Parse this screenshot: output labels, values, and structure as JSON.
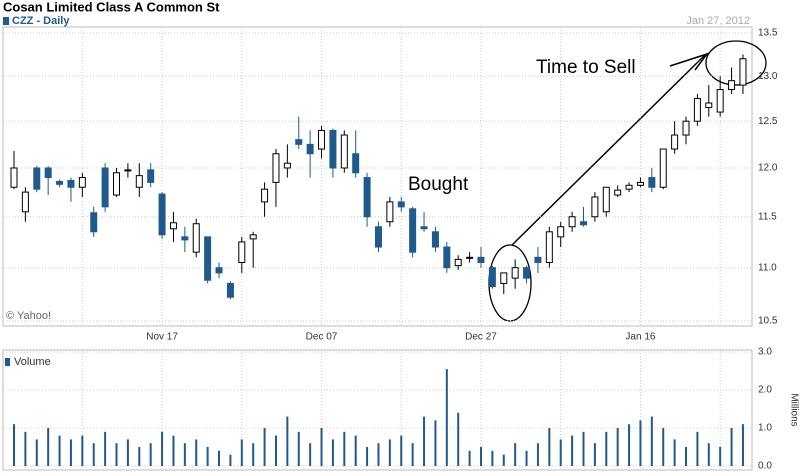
{
  "chart_data": [
    {
      "type": "candlestick",
      "title": "Cosan Limited Class A Common St",
      "name": "CZZ - Daily",
      "date": "Jan 27, 2012",
      "source": "© Yahoo!",
      "annotations": [
        {
          "text": "Bought"
        },
        {
          "text": "Time to Sell"
        }
      ],
      "categories": [
        null,
        null,
        null,
        null,
        null,
        null,
        null,
        null,
        null,
        null,
        null,
        null,
        null,
        "Nov 17",
        null,
        null,
        null,
        null,
        null,
        null,
        null,
        null,
        null,
        null,
        null,
        null,
        null,
        "Dec 07",
        null,
        null,
        null,
        null,
        null,
        null,
        null,
        null,
        null,
        null,
        null,
        null,
        null,
        "Dec 27",
        null,
        null,
        null,
        null,
        null,
        null,
        null,
        null,
        null,
        null,
        null,
        null,
        null,
        "Jan 16",
        null,
        null,
        null,
        null,
        null,
        null,
        null,
        null,
        null
      ],
      "open": [
        11.8,
        11.55,
        12.0,
        12.0,
        11.86,
        11.87,
        11.8,
        11.54,
        12.0,
        11.72,
        11.97,
        11.8,
        11.98,
        11.73,
        11.38,
        11.3,
        11.15,
        11.3,
        11.0,
        10.85,
        11.05,
        11.28,
        11.65,
        11.85,
        12.0,
        12.3,
        12.25,
        12.2,
        12.4,
        12.0,
        12.15,
        11.9,
        11.4,
        11.45,
        11.65,
        11.58,
        11.4,
        11.35,
        11.2,
        11.02,
        11.1,
        11.1,
        11.0,
        10.85,
        10.9,
        11.0,
        11.1,
        11.05,
        11.3,
        11.4,
        11.45,
        11.5,
        11.55,
        11.72,
        11.78,
        11.82,
        11.9,
        11.8,
        12.2,
        12.35,
        12.5,
        12.65,
        12.6,
        12.85,
        12.9
      ],
      "high": [
        12.18,
        11.8,
        12.02,
        12.02,
        11.88,
        11.9,
        11.95,
        11.6,
        12.05,
        12.0,
        12.05,
        12.05,
        12.05,
        11.75,
        11.55,
        11.4,
        11.48,
        11.3,
        11.05,
        10.87,
        11.3,
        11.35,
        11.85,
        12.2,
        12.25,
        12.55,
        12.4,
        12.45,
        12.42,
        12.4,
        12.4,
        11.95,
        11.45,
        11.7,
        11.7,
        11.6,
        11.55,
        11.4,
        11.25,
        11.12,
        11.15,
        11.2,
        11.02,
        10.95,
        11.08,
        11.02,
        11.2,
        11.4,
        11.45,
        11.55,
        11.6,
        11.75,
        11.8,
        11.82,
        11.85,
        11.9,
        12.0,
        12.2,
        12.5,
        12.55,
        12.8,
        12.9,
        13.0,
        13.1,
        13.25
      ],
      "low": [
        11.78,
        11.45,
        11.75,
        11.72,
        11.8,
        11.65,
        11.7,
        11.3,
        11.55,
        11.7,
        11.9,
        11.7,
        11.8,
        11.28,
        11.25,
        11.15,
        11.1,
        10.85,
        10.9,
        10.7,
        10.95,
        11.0,
        11.5,
        11.6,
        11.9,
        12.2,
        11.9,
        12.1,
        11.9,
        11.95,
        11.9,
        11.4,
        11.15,
        11.4,
        11.55,
        11.1,
        11.35,
        11.15,
        10.95,
        10.98,
        11.05,
        11.0,
        10.8,
        10.75,
        10.8,
        10.85,
        10.95,
        11.0,
        11.2,
        11.35,
        11.4,
        11.45,
        11.5,
        11.7,
        11.75,
        11.8,
        11.75,
        11.78,
        12.15,
        12.25,
        12.45,
        12.55,
        12.55,
        12.8,
        12.8
      ],
      "close": [
        12.0,
        11.75,
        11.78,
        11.9,
        11.83,
        11.8,
        11.9,
        11.35,
        11.6,
        11.95,
        11.98,
        11.92,
        11.85,
        11.32,
        11.44,
        11.27,
        11.43,
        10.88,
        10.95,
        10.72,
        11.25,
        11.32,
        11.78,
        12.15,
        12.05,
        12.25,
        12.15,
        12.4,
        12.0,
        12.35,
        11.95,
        11.5,
        11.2,
        11.65,
        11.6,
        11.15,
        11.38,
        11.2,
        11.0,
        11.08,
        11.1,
        11.05,
        10.82,
        10.95,
        11.0,
        10.9,
        11.05,
        11.35,
        11.4,
        11.5,
        11.42,
        11.7,
        11.8,
        11.77,
        11.82,
        11.85,
        11.8,
        12.2,
        12.35,
        12.5,
        12.75,
        12.7,
        12.85,
        12.95,
        13.2
      ],
      "up_color": "#ffffff",
      "down_color": "#1f5a8c",
      "log": true,
      "ylim": [
        10.5,
        13.5
      ],
      "yticks": [
        10.5,
        {
          "value": 11,
          "label": "11.0"
        },
        11.5,
        {
          "value": 12,
          "label": "12.0"
        },
        12.5,
        {
          "value": 13,
          "label": "13.0"
        },
        13.5
      ],
      "grid": true
    },
    {
      "type": "bar",
      "name": "Volume",
      "ylabel": "Millions",
      "color": "#1f5a8c",
      "values": [
        1.1,
        0.9,
        0.7,
        1.0,
        0.8,
        0.7,
        0.8,
        0.6,
        0.9,
        0.6,
        0.7,
        0.5,
        0.6,
        0.9,
        0.8,
        0.6,
        0.7,
        0.5,
        0.4,
        0.3,
        0.7,
        0.6,
        1.0,
        0.8,
        1.3,
        0.9,
        0.6,
        1.0,
        0.7,
        0.9,
        0.8,
        0.5,
        0.6,
        0.7,
        0.8,
        0.6,
        1.3,
        1.2,
        2.55,
        1.4,
        0.4,
        0.5,
        0.4,
        0.3,
        0.6,
        0.4,
        0.6,
        1.0,
        0.7,
        0.8,
        0.9,
        0.6,
        0.9,
        1.0,
        1.1,
        1.2,
        1.3,
        1.0,
        0.7,
        0.5,
        0.9,
        0.6,
        0.5,
        1.0,
        1.1
      ],
      "ylim": [
        0,
        3
      ],
      "yticks": [
        {
          "value": 0,
          "label": "0.0"
        },
        {
          "value": 1,
          "label": "1.0"
        },
        {
          "value": 2,
          "label": "2.0"
        },
        {
          "value": 3,
          "label": "3.0"
        }
      ],
      "grid": true
    }
  ]
}
